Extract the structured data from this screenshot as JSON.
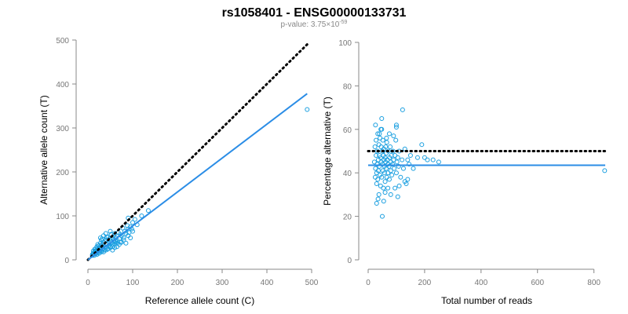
{
  "header": {
    "title": "rs1058401 - ENSG00000133731",
    "pvalue_prefix": "p-value: 3.75×10",
    "pvalue_exponent": "-59"
  },
  "colors": {
    "points": "#1a9fe0",
    "fit_line": "#2b8de6",
    "reference_line": "#000000",
    "axis": "#888888"
  },
  "chart_data": [
    {
      "type": "scatter",
      "title": "",
      "xlabel": "Reference allele count (C)",
      "ylabel": "Alternative allele count (T)",
      "xlim": [
        0,
        500
      ],
      "ylim": [
        0,
        500
      ],
      "xticks": [
        0,
        100,
        200,
        300,
        400,
        500
      ],
      "yticks": [
        0,
        100,
        200,
        300,
        400,
        500
      ],
      "reference_line": {
        "style": "dotted",
        "points": [
          [
            0,
            0
          ],
          [
            490,
            490
          ]
        ]
      },
      "fit_line": {
        "style": "solid",
        "points": [
          [
            0,
            0
          ],
          [
            490,
            378
          ]
        ]
      },
      "points": [
        [
          10,
          12
        ],
        [
          12,
          15
        ],
        [
          14,
          10
        ],
        [
          15,
          18
        ],
        [
          16,
          20
        ],
        [
          18,
          14
        ],
        [
          20,
          22
        ],
        [
          22,
          16
        ],
        [
          25,
          28
        ],
        [
          26,
          20
        ],
        [
          28,
          24
        ],
        [
          30,
          18
        ],
        [
          32,
          35
        ],
        [
          34,
          26
        ],
        [
          36,
          22
        ],
        [
          38,
          30
        ],
        [
          40,
          28
        ],
        [
          42,
          36
        ],
        [
          44,
          24
        ],
        [
          46,
          32
        ],
        [
          48,
          38
        ],
        [
          50,
          28
        ],
        [
          52,
          40
        ],
        [
          55,
          30
        ],
        [
          58,
          45
        ],
        [
          60,
          36
        ],
        [
          62,
          42
        ],
        [
          65,
          38
        ],
        [
          70,
          48
        ],
        [
          72,
          40
        ],
        [
          75,
          55
        ],
        [
          80,
          50
        ],
        [
          85,
          60
        ],
        [
          90,
          70
        ],
        [
          95,
          75
        ],
        [
          100,
          85
        ],
        [
          105,
          92
        ],
        [
          110,
          80
        ],
        [
          90,
          95
        ],
        [
          60,
          60
        ],
        [
          55,
          50
        ],
        [
          45,
          52
        ],
        [
          40,
          60
        ],
        [
          35,
          55
        ],
        [
          30,
          45
        ],
        [
          28,
          38
        ],
        [
          24,
          32
        ],
        [
          20,
          30
        ],
        [
          18,
          26
        ],
        [
          15,
          24
        ],
        [
          12,
          20
        ],
        [
          20,
          12
        ],
        [
          25,
          15
        ],
        [
          30,
          20
        ],
        [
          35,
          18
        ],
        [
          40,
          22
        ],
        [
          45,
          25
        ],
        [
          50,
          30
        ],
        [
          55,
          35
        ],
        [
          60,
          40
        ],
        [
          65,
          45
        ],
        [
          70,
          35
        ],
        [
          75,
          40
        ],
        [
          80,
          45
        ],
        [
          85,
          38
        ],
        [
          90,
          55
        ],
        [
          95,
          50
        ],
        [
          100,
          65
        ],
        [
          120,
          100
        ],
        [
          135,
          112
        ],
        [
          50,
          65
        ],
        [
          40,
          45
        ],
        [
          35,
          40
        ],
        [
          30,
          32
        ],
        [
          25,
          25
        ],
        [
          22,
          24
        ],
        [
          18,
          18
        ],
        [
          16,
          16
        ],
        [
          14,
          14
        ],
        [
          12,
          12
        ],
        [
          10,
          10
        ],
        [
          22,
          35
        ],
        [
          28,
          50
        ],
        [
          32,
          48
        ],
        [
          38,
          42
        ],
        [
          42,
          52
        ],
        [
          48,
          48
        ],
        [
          52,
          58
        ],
        [
          58,
          55
        ],
        [
          62,
          50
        ],
        [
          68,
          62
        ],
        [
          72,
          58
        ],
        [
          78,
          72
        ],
        [
          82,
          65
        ],
        [
          88,
          78
        ],
        [
          92,
          62
        ],
        [
          98,
          70
        ],
        [
          55,
          22
        ],
        [
          60,
          28
        ],
        [
          65,
          30
        ],
        [
          490,
          342
        ]
      ]
    },
    {
      "type": "scatter",
      "title": "",
      "xlabel": "Total number of reads",
      "ylabel": "Percentage alternative (T)",
      "xlim": [
        0,
        840
      ],
      "ylim": [
        0,
        100
      ],
      "xticks": [
        0,
        200,
        400,
        600,
        800
      ],
      "yticks": [
        0,
        20,
        40,
        60,
        80,
        100
      ],
      "reference_line": {
        "style": "dotted",
        "points": [
          [
            0,
            50
          ],
          [
            840,
            50
          ]
        ]
      },
      "fit_line": {
        "style": "solid",
        "points": [
          [
            0,
            43.5
          ],
          [
            840,
            43.5
          ]
        ]
      },
      "points": [
        [
          22,
          45
        ],
        [
          24,
          52
        ],
        [
          25,
          38
        ],
        [
          26,
          42
        ],
        [
          28,
          55
        ],
        [
          28,
          48
        ],
        [
          30,
          40
        ],
        [
          30,
          35
        ],
        [
          32,
          50
        ],
        [
          32,
          44
        ],
        [
          34,
          58
        ],
        [
          34,
          37
        ],
        [
          36,
          46
        ],
        [
          36,
          41
        ],
        [
          38,
          53
        ],
        [
          38,
          30
        ],
        [
          40,
          48
        ],
        [
          40,
          43
        ],
        [
          42,
          56
        ],
        [
          42,
          39
        ],
        [
          44,
          47
        ],
        [
          44,
          34
        ],
        [
          46,
          52
        ],
        [
          46,
          45
        ],
        [
          48,
          60
        ],
        [
          48,
          38
        ],
        [
          50,
          44
        ],
        [
          50,
          50
        ],
        [
          52,
          41
        ],
        [
          52,
          55
        ],
        [
          54,
          48
        ],
        [
          54,
          33
        ],
        [
          56,
          46
        ],
        [
          56,
          51
        ],
        [
          58,
          40
        ],
        [
          58,
          43
        ],
        [
          60,
          47
        ],
        [
          60,
          36
        ],
        [
          62,
          52
        ],
        [
          62,
          45
        ],
        [
          64,
          42
        ],
        [
          64,
          49
        ],
        [
          66,
          38
        ],
        [
          66,
          54
        ],
        [
          68,
          46
        ],
        [
          70,
          44
        ],
        [
          70,
          40
        ],
        [
          72,
          50
        ],
        [
          74,
          43
        ],
        [
          75,
          37
        ],
        [
          76,
          47
        ],
        [
          78,
          52
        ],
        [
          80,
          45
        ],
        [
          80,
          41
        ],
        [
          82,
          48
        ],
        [
          84,
          39
        ],
        [
          86,
          44
        ],
        [
          88,
          50
        ],
        [
          90,
          46
        ],
        [
          92,
          42
        ],
        [
          95,
          48
        ],
        [
          98,
          55
        ],
        [
          100,
          40
        ],
        [
          102,
          45
        ],
        [
          105,
          47
        ],
        [
          108,
          43
        ],
        [
          110,
          50
        ],
        [
          115,
          38
        ],
        [
          120,
          46
        ],
        [
          125,
          42
        ],
        [
          130,
          51
        ],
        [
          135,
          35
        ],
        [
          140,
          46
        ],
        [
          145,
          44
        ],
        [
          150,
          48
        ],
        [
          160,
          42
        ],
        [
          175,
          47
        ],
        [
          190,
          53
        ],
        [
          200,
          47
        ],
        [
          210,
          46
        ],
        [
          230,
          46
        ],
        [
          250,
          45
        ],
        [
          26,
          62
        ],
        [
          30,
          26
        ],
        [
          35,
          28
        ],
        [
          40,
          58
        ],
        [
          45,
          60
        ],
        [
          48,
          65
        ],
        [
          50,
          20
        ],
        [
          55,
          27
        ],
        [
          60,
          31
        ],
        [
          65,
          56
        ],
        [
          70,
          33
        ],
        [
          75,
          58
        ],
        [
          80,
          30
        ],
        [
          90,
          57
        ],
        [
          95,
          33
        ],
        [
          100,
          61
        ],
        [
          105,
          29
        ],
        [
          110,
          34
        ],
        [
          122,
          69
        ],
        [
          100,
          62
        ],
        [
          130,
          36
        ],
        [
          140,
          37
        ],
        [
          838,
          41
        ]
      ]
    }
  ]
}
